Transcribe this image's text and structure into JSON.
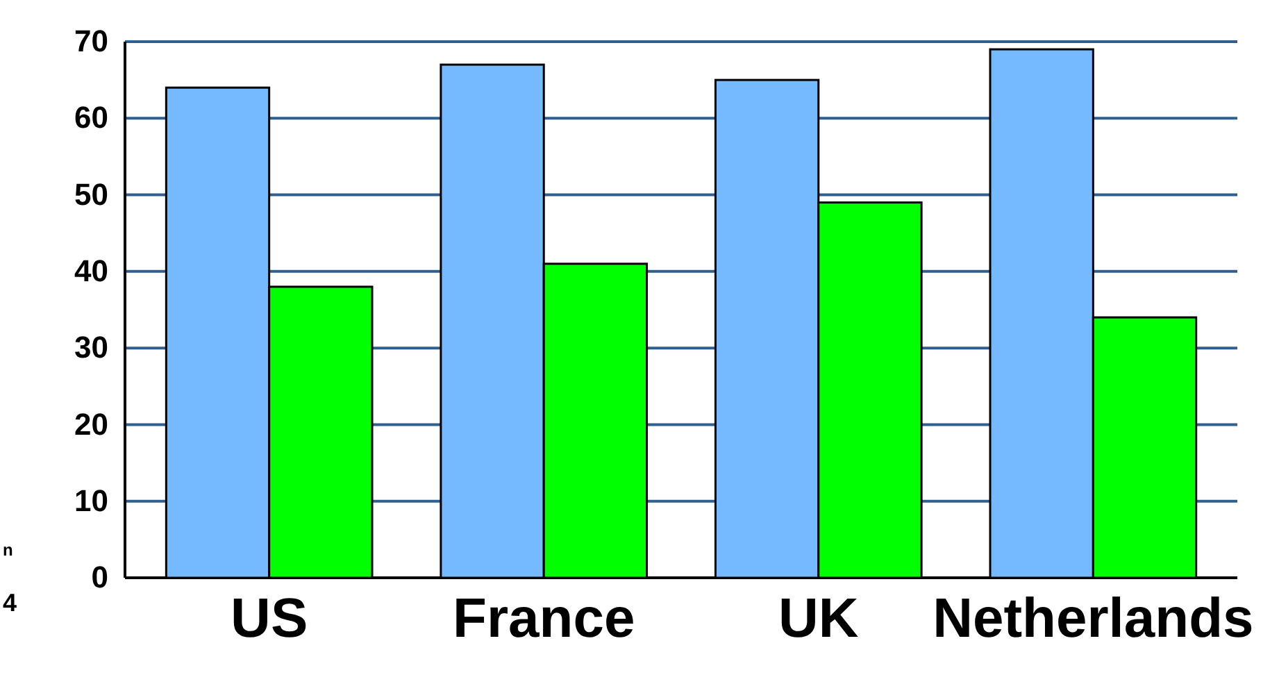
{
  "chart_data": {
    "type": "bar",
    "categories": [
      "US",
      "France",
      "UK",
      "Netherlands"
    ],
    "series": [
      {
        "color": "#75b9ff",
        "values": [
          64,
          67,
          65,
          69
        ]
      },
      {
        "color": "#00ff00",
        "values": [
          38,
          41,
          49,
          34
        ]
      }
    ],
    "ylim": [
      0,
      70
    ],
    "yticks": [
      0,
      10,
      20,
      30,
      40,
      50,
      60,
      70
    ],
    "grid": "y",
    "annotations": [
      "n",
      "4"
    ]
  }
}
